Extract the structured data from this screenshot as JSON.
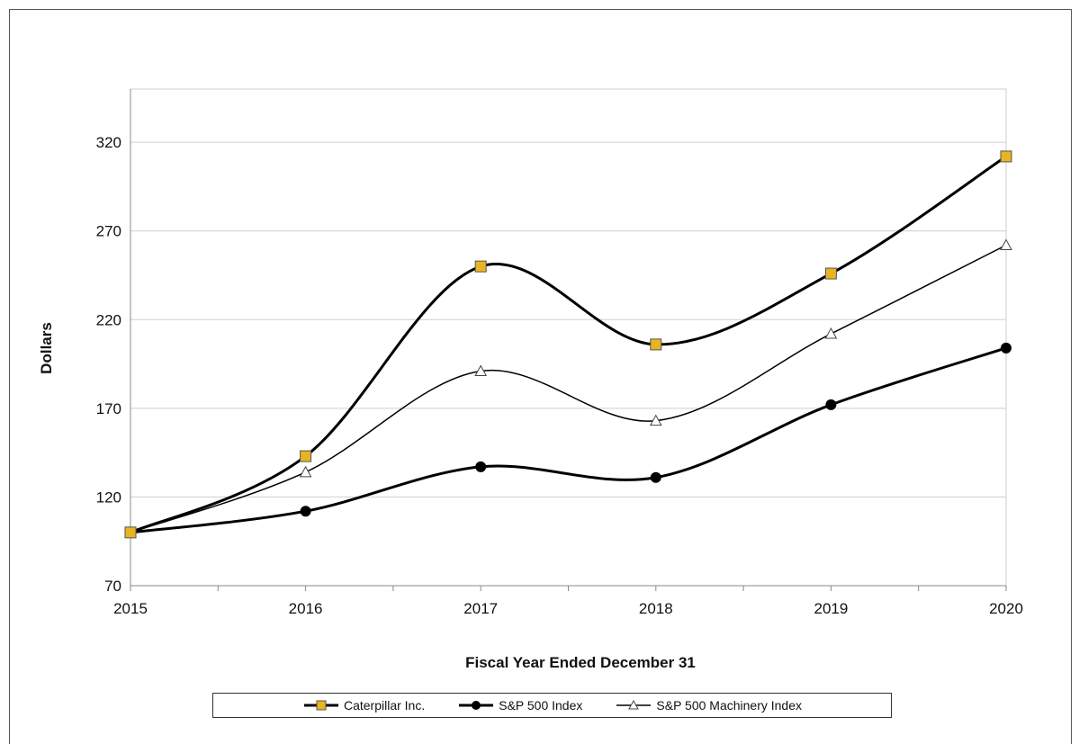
{
  "chart_data": {
    "type": "line",
    "title": "",
    "xlabel": "Fiscal Year Ended December 31",
    "ylabel": "Dollars",
    "x": [
      "2015",
      "2016",
      "2017",
      "2018",
      "2019",
      "2020"
    ],
    "ylim": [
      70,
      350
    ],
    "yticks": [
      70,
      120,
      170,
      220,
      270,
      320
    ],
    "grid": true,
    "legend_position": "bottom",
    "series": [
      {
        "name": "Caterpillar Inc.",
        "values": [
          100,
          143,
          250,
          206,
          246,
          312
        ],
        "color": "#000000",
        "marker": "square",
        "marker_color": "#E8B421",
        "line_width": 3
      },
      {
        "name": "S&P 500 Index",
        "values": [
          100,
          112,
          137,
          131,
          172,
          204
        ],
        "color": "#000000",
        "marker": "circle",
        "marker_color": "#000000",
        "line_width": 3
      },
      {
        "name": "S&P 500 Machinery Index",
        "values": [
          100,
          134,
          191,
          163,
          212,
          262
        ],
        "color": "#000000",
        "marker": "triangle",
        "marker_color": "#ffffff",
        "line_width": 1.5
      }
    ]
  }
}
